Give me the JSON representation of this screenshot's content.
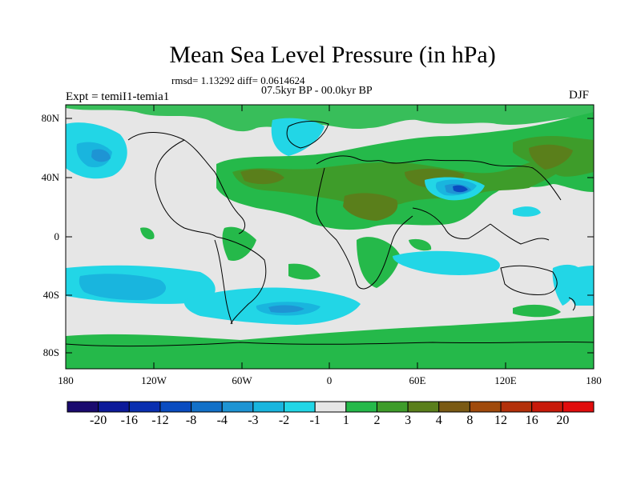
{
  "title": "Mean Sea Level Pressure (in hPa)",
  "stats_text": "rmsd= 1.13292  diff= 0.0614624",
  "period": "07.5kyr BP - 00.0kyr BP",
  "experiment": "Expt = temiI1-temia1",
  "season": "DJF",
  "lat_labels": [
    "80N",
    "40N",
    "0",
    "40S",
    "80S"
  ],
  "lon_labels": [
    "180",
    "120W",
    "60W",
    "0",
    "60E",
    "120E",
    "180"
  ],
  "colorbar": {
    "labels": [
      "-20",
      "-16",
      "-12",
      "-8",
      "-4",
      "-3",
      "-2",
      "-1",
      "1",
      "2",
      "3",
      "4",
      "8",
      "12",
      "16",
      "20"
    ],
    "colors": [
      "#1a0a6e",
      "#0d1a99",
      "#0a2fb0",
      "#0a4cc0",
      "#1270c8",
      "#1e94d4",
      "#19b5de",
      "#22d6e6",
      "#e6e6e6",
      "#25b94a",
      "#3e9c2a",
      "#5a7f1b",
      "#7a5a14",
      "#a04a0c",
      "#b3300a",
      "#c81a0a",
      "#e10d0d"
    ]
  },
  "colors": {
    "background": "#e6e6e6",
    "positive_1_2": "#25b94a",
    "positive_2_3": "#3e9c2a",
    "positive_3_4": "#5a7f1b",
    "negative_1_2": "#22d6e6",
    "negative_2_3": "#19b5de",
    "negative_3_4": "#1e94d4",
    "negative_4_8": "#1270c8"
  }
}
